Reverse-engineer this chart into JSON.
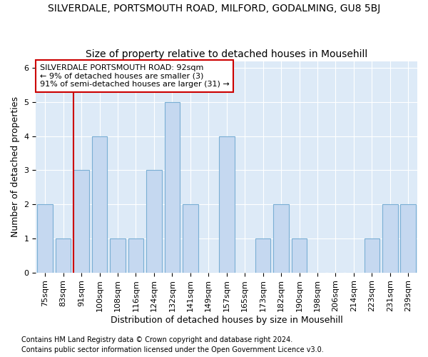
{
  "title": "SILVERDALE, PORTSMOUTH ROAD, MILFORD, GODALMING, GU8 5BJ",
  "subtitle": "Size of property relative to detached houses in Mousehill",
  "xlabel": "Distribution of detached houses by size in Mousehill",
  "ylabel": "Number of detached properties",
  "categories": [
    "75sqm",
    "83sqm",
    "91sqm",
    "100sqm",
    "108sqm",
    "116sqm",
    "124sqm",
    "132sqm",
    "141sqm",
    "149sqm",
    "157sqm",
    "165sqm",
    "173sqm",
    "182sqm",
    "190sqm",
    "198sqm",
    "206sqm",
    "214sqm",
    "223sqm",
    "231sqm",
    "239sqm"
  ],
  "values": [
    2,
    1,
    3,
    4,
    1,
    1,
    3,
    5,
    2,
    0,
    4,
    0,
    1,
    2,
    1,
    0,
    0,
    0,
    1,
    2,
    2
  ],
  "bar_color": "#c5d8f0",
  "bar_edge_color": "#7aafd4",
  "highlight_line_color": "#cc0000",
  "highlight_bar_index": 2,
  "ylim": [
    0,
    6.2
  ],
  "yticks": [
    0,
    1,
    2,
    3,
    4,
    5,
    6
  ],
  "annotation_text": "SILVERDALE PORTSMOUTH ROAD: 92sqm\n← 9% of detached houses are smaller (3)\n91% of semi-detached houses are larger (31) →",
  "footer_line1": "Contains HM Land Registry data © Crown copyright and database right 2024.",
  "footer_line2": "Contains public sector information licensed under the Open Government Licence v3.0.",
  "fig_bg_color": "#ffffff",
  "plot_bg_color": "#ddeaf7",
  "title_fontsize": 10,
  "subtitle_fontsize": 10,
  "axis_label_fontsize": 9,
  "tick_fontsize": 8,
  "annot_fontsize": 8,
  "footer_fontsize": 7
}
